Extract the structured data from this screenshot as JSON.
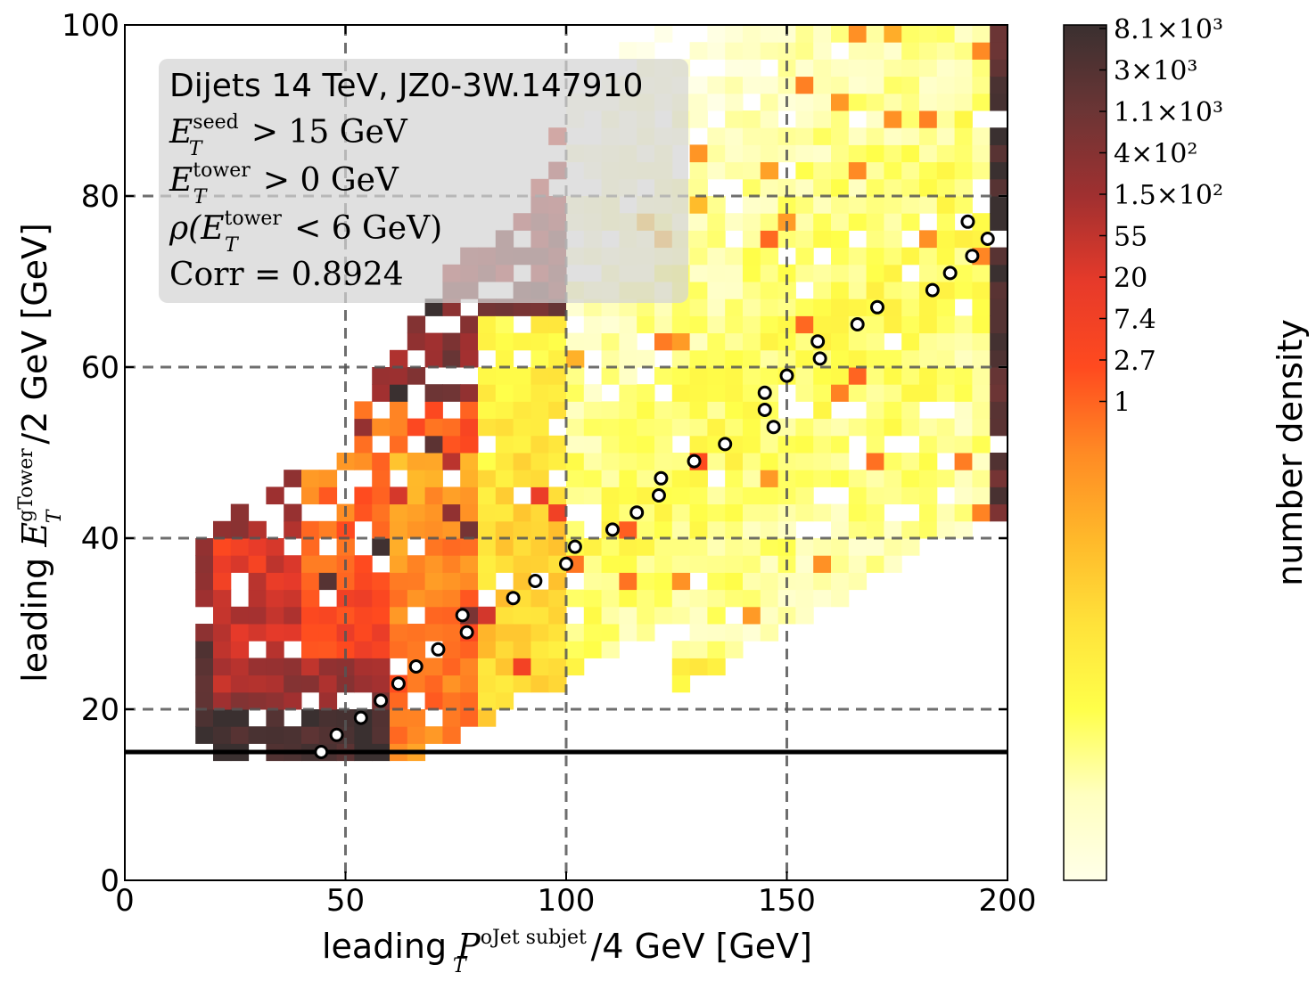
{
  "chart_data": {
    "type": "heatmap",
    "xlabel": "leading P_T^{oJet subjet} /4 GeV [GeV]",
    "xlabel_parts": {
      "prefix": "leading ",
      "symbol": "P",
      "sub": "T",
      "sup": "oJet subjet",
      "suffix": "/4 GeV [GeV]"
    },
    "ylabel": "leading E_T^{gTower} /2 GeV [GeV]",
    "ylabel_parts": {
      "prefix": "leading ",
      "symbol": "E",
      "sub": "T",
      "sup": "gTower",
      "suffix": "/2 GeV [GeV]"
    },
    "xlim": [
      0,
      200
    ],
    "ylim": [
      0,
      100
    ],
    "x_ticks": [
      0,
      50,
      100,
      150,
      200
    ],
    "x_tick_labels": [
      "0",
      "50",
      "100",
      "150",
      "200"
    ],
    "y_ticks": [
      0,
      20,
      40,
      60,
      80,
      100
    ],
    "y_tick_labels": [
      "0",
      "20",
      "40",
      "60",
      "80",
      "100"
    ],
    "grid": true,
    "grid_lines_x": [
      50,
      100,
      150
    ],
    "grid_lines_y": [
      20,
      40,
      60,
      80
    ],
    "threshold_line_y": 15,
    "colorbar": {
      "label": "number density",
      "scale": "log",
      "tick_labels": [
        "8.1×10³",
        "3×10³",
        "1.1×10³",
        "4×10²",
        "1.5×10²",
        "55",
        "20",
        "7.4",
        "2.7",
        "1"
      ],
      "colors": [
        "#3a3030",
        "#6b3535",
        "#a03030",
        "#e63a2a",
        "#ff4a1f",
        "#ff8a24",
        "#ffb82a",
        "#ffe23a",
        "#ffff4a",
        "#ffffc0",
        "#ffffe8"
      ]
    },
    "annotation": {
      "title": "Dijets 14 TeV, JZ0-3W.147910",
      "line1": {
        "lhs": "E",
        "sub": "T",
        "sup": "seed",
        "rhs": " > 15 GeV"
      },
      "line2": {
        "lhs": "E",
        "sub": "T",
        "sup": "tower",
        "rhs": " > 0 GeV"
      },
      "line3": {
        "prefix": "ρ(",
        "lhs": "E",
        "sub": "T",
        "sup": "tower",
        "rhs": " < 6 GeV)"
      },
      "line4": "Corr = 0.8924"
    },
    "profile_points": {
      "name": "profile",
      "x": [
        44.5,
        48,
        53.5,
        58,
        62,
        66,
        71,
        76.5,
        77.5,
        88,
        93,
        100,
        102,
        110.5,
        116,
        121,
        121.5,
        129,
        136,
        145,
        145,
        147,
        150,
        157,
        157.5,
        166,
        170.5,
        183,
        187,
        191,
        192,
        195.5
      ],
      "y": [
        15,
        17,
        19,
        21,
        23,
        25,
        27,
        31,
        29,
        33,
        35,
        37,
        39,
        41,
        43,
        45,
        47,
        49,
        51,
        57,
        55,
        53,
        59,
        63,
        61,
        65,
        67,
        69,
        71,
        77,
        73,
        75
      ]
    },
    "density_regions": [
      {
        "x": [
          16,
          80
        ],
        "y": [
          14,
          30
        ],
        "level": 0.0
      },
      {
        "x": [
          20,
          72
        ],
        "y": [
          20,
          40
        ],
        "level": 0.15
      },
      {
        "x": [
          40,
          100
        ],
        "y": [
          25,
          55
        ],
        "level": 0.3
      },
      {
        "x": [
          60,
          110
        ],
        "y": [
          14,
          50
        ],
        "level": 0.45
      },
      {
        "x": [
          80,
          150
        ],
        "y": [
          14,
          65
        ],
        "level": 0.65
      },
      {
        "x": [
          100,
          196
        ],
        "y": [
          25,
          100
        ],
        "level": 0.8
      }
    ]
  }
}
